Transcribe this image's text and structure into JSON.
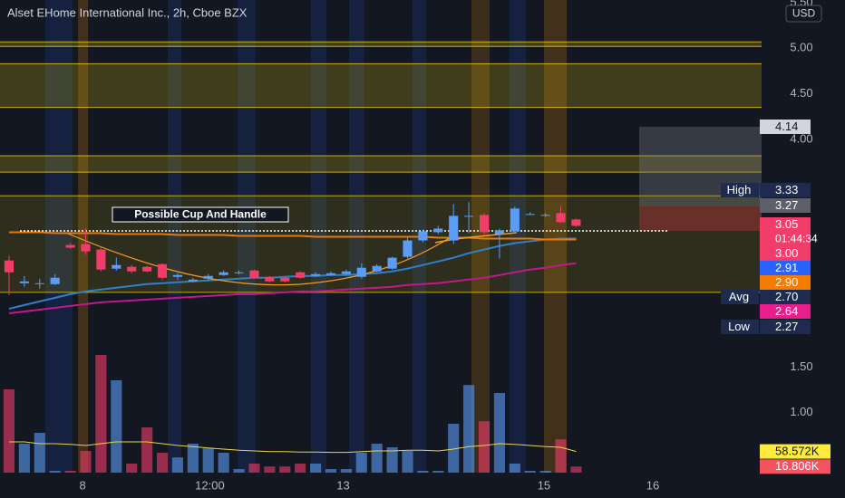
{
  "chart_data": {
    "type": "candlestick",
    "title": "Alset EHome International Inc., 2h, Cboe BZX",
    "currency": "USD",
    "annotation": "Possible Cup And Handle",
    "x": [
      0,
      1,
      2,
      3,
      4,
      5,
      6,
      7,
      8,
      9,
      10,
      11,
      12,
      13,
      14,
      15,
      16,
      17,
      18,
      19,
      20,
      21,
      22,
      23,
      24,
      25,
      26,
      27,
      28,
      29,
      30,
      31,
      32,
      33,
      34,
      35,
      36,
      37
    ],
    "xlim": [
      -0.59,
      49.1
    ],
    "xticks": [
      {
        "value": 4.8,
        "label": "8"
      },
      {
        "value": 13.1,
        "label": "12:00"
      },
      {
        "value": 21.8,
        "label": "13"
      },
      {
        "value": 34.9,
        "label": "15"
      },
      {
        "value": 42.0,
        "label": "16"
      }
    ],
    "ylim": [
      0.36,
      5.53
    ],
    "yticks": [
      {
        "value": 5.5,
        "label": "5.50"
      },
      {
        "value": 5,
        "label": "5.00"
      },
      {
        "value": 4.5,
        "label": "4.50"
      },
      {
        "value": 4,
        "label": "4.00"
      },
      {
        "value": 1.5,
        "label": "1.50"
      },
      {
        "value": 1,
        "label": "1.00"
      }
    ],
    "open": [
      2.67,
      2.42,
      2.41,
      2.41,
      2.84,
      2.85,
      2.79,
      2.58,
      2.6,
      2.6,
      2.63,
      2.49,
      2.44,
      2.47,
      2.51,
      2.53,
      2.56,
      2.49,
      2.48,
      2.54,
      2.5,
      2.51,
      2.52,
      2.49,
      2.55,
      2.58,
      2.71,
      2.89,
      2.98,
      2.89,
      3.15,
      3.17,
      2.96,
      2.99,
      3.18,
      3.16,
      3.19,
      3.12
    ],
    "high": [
      2.72,
      2.5,
      2.47,
      2.52,
      2.86,
      3.02,
      2.81,
      2.7,
      2.62,
      2.61,
      2.64,
      2.53,
      2.48,
      2.52,
      2.56,
      2.56,
      2.57,
      2.5,
      2.49,
      2.55,
      2.54,
      2.55,
      2.57,
      2.64,
      2.63,
      2.71,
      2.92,
      3.01,
      3.05,
      3.29,
      3.31,
      3.19,
      3.02,
      3.26,
      3.2,
      3.19,
      3.27,
      3.13
    ],
    "low": [
      2.29,
      2.38,
      2.36,
      2.4,
      2.8,
      2.74,
      2.55,
      2.56,
      2.53,
      2.54,
      2.46,
      2.46,
      2.43,
      2.45,
      2.5,
      2.52,
      2.47,
      2.43,
      2.43,
      2.47,
      2.49,
      2.5,
      2.51,
      2.47,
      2.54,
      2.57,
      2.69,
      2.87,
      2.96,
      2.85,
      2.97,
      2.96,
      2.69,
      2.97,
      3.17,
      3.15,
      3.08,
      3.04
    ],
    "close": [
      2.54,
      2.44,
      2.42,
      2.48,
      2.81,
      2.77,
      2.57,
      2.62,
      2.55,
      2.55,
      2.48,
      2.51,
      2.46,
      2.5,
      2.54,
      2.54,
      2.48,
      2.44,
      2.44,
      2.48,
      2.52,
      2.53,
      2.55,
      2.59,
      2.61,
      2.7,
      2.89,
      2.99,
      3.02,
      3.16,
      3.16,
      2.98,
      3.0,
      3.24,
      3.18,
      3.17,
      3.09,
      3.05
    ],
    "up_color": "#5b9cf6",
    "down_color": "#f23c6a",
    "moving_averages": [
      {
        "color": "#2f7fc9",
        "values": [
          2.14,
          2.18,
          2.22,
          2.26,
          2.3,
          2.33,
          2.35,
          2.37,
          2.39,
          2.41,
          2.42,
          2.43,
          2.44,
          2.45,
          2.46,
          2.47,
          2.48,
          2.48,
          2.49,
          2.5,
          2.5,
          2.51,
          2.51,
          2.52,
          2.53,
          2.55,
          2.58,
          2.62,
          2.66,
          2.7,
          2.75,
          2.79,
          2.83,
          2.86,
          2.88,
          2.9,
          2.91,
          2.91
        ]
      },
      {
        "color": "#c2188f",
        "values": [
          2.09,
          2.11,
          2.13,
          2.15,
          2.17,
          2.19,
          2.21,
          2.22,
          2.23,
          2.24,
          2.25,
          2.26,
          2.27,
          2.28,
          2.29,
          2.3,
          2.3,
          2.31,
          2.32,
          2.33,
          2.33,
          2.34,
          2.35,
          2.36,
          2.37,
          2.38,
          2.4,
          2.41,
          2.42,
          2.44,
          2.46,
          2.48,
          2.51,
          2.54,
          2.57,
          2.59,
          2.62,
          2.64
        ]
      },
      {
        "color": "#e07a12",
        "values": [
          2.98,
          2.98,
          2.98,
          2.97,
          2.97,
          2.97,
          2.97,
          2.96,
          2.96,
          2.96,
          2.96,
          2.95,
          2.95,
          2.95,
          2.95,
          2.94,
          2.94,
          2.94,
          2.94,
          2.94,
          2.93,
          2.93,
          2.93,
          2.93,
          2.93,
          2.93,
          2.93,
          2.93,
          2.92,
          2.92,
          2.92,
          2.91,
          2.91,
          2.91,
          2.91,
          2.9,
          2.9,
          2.9
        ]
      }
    ],
    "zones": [
      {
        "low": 5.02,
        "high": 5.07
      },
      {
        "low": 4.35,
        "high": 4.83
      },
      {
        "low": 3.64,
        "high": 3.82
      },
      {
        "low": 2.32,
        "high": 3.38
      }
    ],
    "zone_color": "#f5d90a",
    "volume": [
      230,
      80,
      110,
      5,
      5,
      60,
      325,
      255,
      25,
      125,
      55,
      42,
      80,
      67,
      55,
      10,
      25,
      17,
      17,
      25,
      25,
      10,
      10,
      55,
      80,
      70,
      60,
      5,
      5,
      135,
      242,
      142,
      220,
      25,
      5,
      5,
      92,
      16.806
    ],
    "volume_lim": [
      0,
      400
    ],
    "volume_ma": [
      85,
      85,
      80,
      80,
      78,
      75,
      80,
      85,
      85,
      85,
      80,
      75,
      72,
      68,
      65,
      62,
      60,
      58,
      58,
      57,
      57,
      56,
      56,
      58,
      60,
      60,
      62,
      62,
      60,
      65,
      72,
      75,
      80,
      78,
      75,
      72,
      70,
      58.572
    ],
    "volume_ma_color": "#e8d44d",
    "price_tags": [
      {
        "value": 4.14,
        "label": "4.14",
        "color": "#d1d4dc"
      },
      {
        "caption": "High",
        "value": 3.33,
        "label": "3.33",
        "color": "#1e2b4f"
      },
      {
        "value": 3.27,
        "label": "3.27",
        "color": "#5d606b"
      },
      {
        "value": 3.05,
        "label": "3.05",
        "color": "#f23c6a",
        "countdown": "01:44:34"
      },
      {
        "value": 3.0,
        "label": "3.00",
        "color": "#f23c6a"
      },
      {
        "value": 2.91,
        "label": "2.91",
        "color": "#2962ff"
      },
      {
        "value": 2.9,
        "label": "2.90",
        "color": "#f57c00"
      },
      {
        "caption": "Avg",
        "value": 2.7,
        "label": "2.70",
        "color": "#1e2b4f"
      },
      {
        "value": 2.64,
        "label": "2.64",
        "color": "#e91e8c"
      },
      {
        "caption": "Low",
        "value": 2.27,
        "label": "2.27",
        "color": "#1e2b4f"
      }
    ],
    "volume_tags": [
      {
        "value": 58.572,
        "label": "58.572K",
        "color": "#ffeb3b"
      },
      {
        "value": 16.806,
        "label": "16.806K",
        "color": "#f7525f"
      }
    ]
  }
}
